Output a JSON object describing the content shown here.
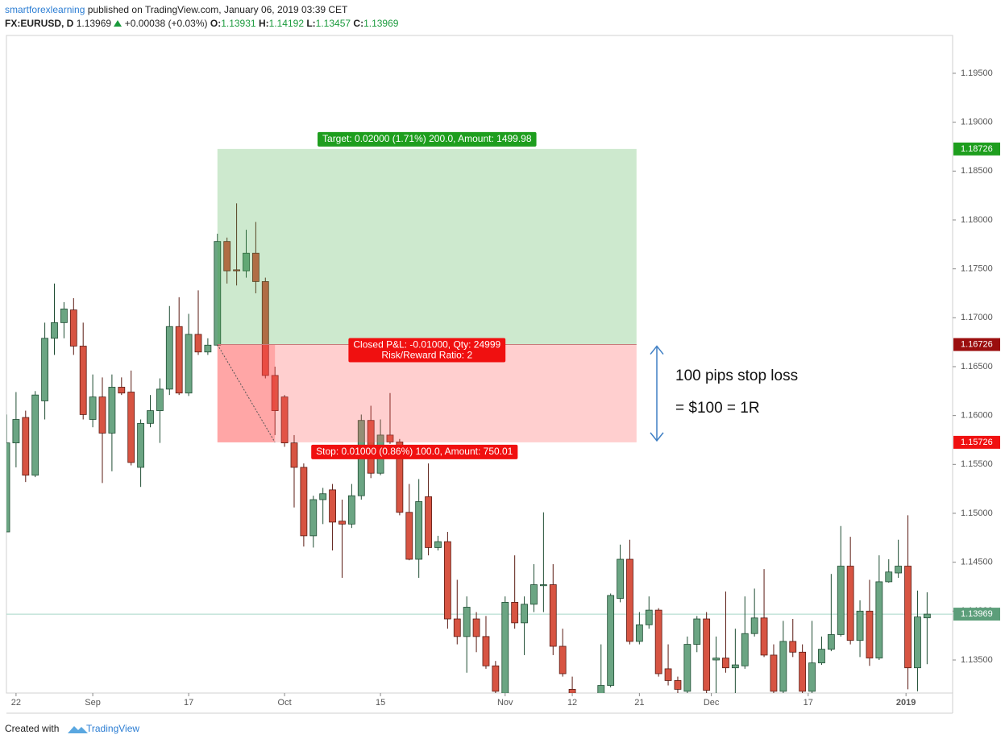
{
  "chart_data": {
    "type": "candlestick",
    "header": {
      "author": "smartforexlearning",
      "published": "published on TradingView.com, January 06, 2019 03:39 CET",
      "symbol": "FX:EURUSD, D",
      "last": 1.13969,
      "change": "+0.00038 (+0.03%)",
      "ohlc": [
        {
          "label": "O:",
          "value": 1.13931
        },
        {
          "label": "H:",
          "value": 1.14192
        },
        {
          "label": "L:",
          "value": 1.13457
        },
        {
          "label": "C:",
          "value": 1.13969
        }
      ]
    },
    "up_color": "#6ba583",
    "down_color": "#d75442",
    "x": [
      0,
      1,
      2,
      3,
      4,
      5,
      6,
      7,
      8,
      9,
      10,
      11,
      12,
      13,
      14,
      15,
      16,
      17,
      18,
      19,
      20,
      21,
      22,
      23,
      24,
      25,
      26,
      27,
      28,
      29,
      30,
      31,
      32,
      33,
      34,
      35,
      36,
      37,
      38,
      39,
      40,
      41,
      42,
      43,
      44,
      45,
      46,
      47,
      48,
      49,
      50,
      51,
      52,
      53,
      54,
      55,
      56,
      57,
      58,
      59,
      62,
      63,
      64,
      65,
      66,
      67,
      68,
      69,
      70,
      71,
      72,
      73,
      74,
      75,
      76,
      77,
      78,
      79,
      80,
      81,
      82,
      83,
      84,
      85,
      86,
      87,
      88,
      89,
      90,
      91,
      92,
      93,
      94,
      95,
      96
    ],
    "open": [
      1.1481,
      1.1572,
      1.1598,
      1.1539,
      1.1615,
      1.1679,
      1.1695,
      1.1708,
      1.1671,
      1.1596,
      1.1619,
      1.1582,
      1.1629,
      1.1624,
      1.1547,
      1.1592,
      1.1605,
      1.1627,
      1.1691,
      1.1623,
      1.1683,
      1.1665,
      1.1672,
      1.1778,
      1.1749,
      1.1748,
      1.1766,
      1.1737,
      1.1641,
      1.1619,
      1.1572,
      1.1547,
      1.1477,
      1.1514,
      1.1524,
      1.1492,
      1.1489,
      1.1518,
      1.1595,
      1.1541,
      1.158,
      1.1573,
      1.1501,
      1.1453,
      1.1517,
      1.1465,
      1.1471,
      1.1392,
      1.1374,
      1.1392,
      1.1374,
      1.1344,
      1.1316,
      1.1409,
      1.1388,
      1.1407,
      1.1426,
      1.1427,
      1.1364,
      1.132,
      1.131,
      1.1324,
      1.1413,
      1.1453,
      1.1369,
      1.1386,
      1.1401,
      1.1341,
      1.1329,
      1.1318,
      1.1366,
      1.1392,
      1.135,
      1.1352,
      1.1342,
      1.1344,
      1.1377,
      1.1393,
      1.1355,
      1.1318,
      1.1369,
      1.1358,
      1.1318,
      1.1347,
      1.1361,
      1.1376,
      1.1446,
      1.137,
      1.14,
      1.1352,
      1.143,
      1.1439,
      1.1446,
      1.1342,
      1.13931
    ],
    "high": [
      1.1601,
      1.1624,
      1.1605,
      1.1625,
      1.1695,
      1.1735,
      1.1716,
      1.172,
      1.1695,
      1.1642,
      1.1639,
      1.1642,
      1.1639,
      1.1646,
      1.1596,
      1.1621,
      1.1638,
      1.1712,
      1.1721,
      1.1704,
      1.1728,
      1.1679,
      1.1786,
      1.1782,
      1.1817,
      1.179,
      1.1798,
      1.1741,
      1.165,
      1.1621,
      1.158,
      1.1551,
      1.1518,
      1.1526,
      1.153,
      1.1514,
      1.153,
      1.1601,
      1.161,
      1.1596,
      1.1623,
      1.1576,
      1.153,
      1.1535,
      1.1551,
      1.1477,
      1.1481,
      1.1432,
      1.1415,
      1.1399,
      1.1395,
      1.1349,
      1.1415,
      1.1457,
      1.1415,
      1.1448,
      1.1501,
      1.1448,
      1.1382,
      1.1333,
      1.1366,
      1.1418,
      1.1468,
      1.1473,
      1.1399,
      1.1415,
      1.1403,
      1.1366,
      1.1333,
      1.1374,
      1.1395,
      1.1399,
      1.1374,
      1.142,
      1.1382,
      1.1415,
      1.1423,
      1.1443,
      1.1366,
      1.139,
      1.1392,
      1.1366,
      1.139,
      1.1374,
      1.1438,
      1.1487,
      1.1476,
      1.1411,
      1.1432,
      1.1457,
      1.1453,
      1.1473,
      1.1498,
      1.1421,
      1.14192
    ],
    "low": [
      1.1481,
      1.1547,
      1.1532,
      1.1537,
      1.1596,
      1.1662,
      1.1679,
      1.1662,
      1.1596,
      1.1588,
      1.1531,
      1.1543,
      1.1621,
      1.1549,
      1.1527,
      1.1588,
      1.1572,
      1.1621,
      1.1621,
      1.162,
      1.1662,
      1.1662,
      1.1671,
      1.1735,
      1.1733,
      1.1741,
      1.1725,
      1.1638,
      1.158,
      1.1568,
      1.1506,
      1.1466,
      1.1465,
      1.1489,
      1.1462,
      1.1434,
      1.1485,
      1.1514,
      1.1536,
      1.1539,
      1.1571,
      1.1498,
      1.1452,
      1.1434,
      1.1457,
      1.1462,
      1.1382,
      1.1366,
      1.1337,
      1.1358,
      1.1341,
      1.1316,
      1.131,
      1.1382,
      1.1355,
      1.1399,
      1.1399,
      1.1355,
      1.1333,
      1.1305,
      1.13,
      1.1322,
      1.1409,
      1.1366,
      1.1366,
      1.1382,
      1.1333,
      1.1324,
      1.131,
      1.131,
      1.1358,
      1.131,
      1.131,
      1.1337,
      1.131,
      1.1341,
      1.1374,
      1.1353,
      1.131,
      1.131,
      1.1353,
      1.131,
      1.131,
      1.1345,
      1.1359,
      1.1374,
      1.1366,
      1.1353,
      1.1344,
      1.135,
      1.1429,
      1.1434,
      1.132,
      1.1318,
      1.13457
    ],
    "close": [
      1.1572,
      1.1596,
      1.1539,
      1.1621,
      1.1679,
      1.1695,
      1.1709,
      1.1671,
      1.1601,
      1.1619,
      1.1582,
      1.1629,
      1.1623,
      1.1552,
      1.1592,
      1.1605,
      1.1627,
      1.1691,
      1.1623,
      1.1683,
      1.1665,
      1.1672,
      1.1778,
      1.1748,
      1.1748,
      1.1766,
      1.1737,
      1.1641,
      1.1605,
      1.1572,
      1.1547,
      1.1477,
      1.1514,
      1.152,
      1.1491,
      1.1489,
      1.1518,
      1.1595,
      1.1541,
      1.158,
      1.1573,
      1.1501,
      1.1453,
      1.1512,
      1.1465,
      1.1471,
      1.1392,
      1.1374,
      1.1404,
      1.1374,
      1.1344,
      1.1318,
      1.1409,
      1.1388,
      1.1407,
      1.1427,
      1.1427,
      1.1364,
      1.1336,
      1.1316,
      1.1324,
      1.1416,
      1.1453,
      1.1369,
      1.1386,
      1.1401,
      1.1336,
      1.1329,
      1.132,
      1.1366,
      1.1392,
      1.1319,
      1.1352,
      1.1342,
      1.1345,
      1.1377,
      1.1393,
      1.1355,
      1.1318,
      1.1369,
      1.1358,
      1.1318,
      1.1347,
      1.1361,
      1.1376,
      1.1446,
      1.137,
      1.14,
      1.1352,
      1.143,
      1.144,
      1.1446,
      1.1342,
      1.1394,
      1.13969
    ],
    "xlim": [
      0,
      98.66
    ],
    "xticks": [
      {
        "value": 1,
        "label": "22"
      },
      {
        "value": 9,
        "label": "Sep"
      },
      {
        "value": 19,
        "label": "17"
      },
      {
        "value": 29,
        "label": "Oct"
      },
      {
        "value": 39,
        "label": "15"
      },
      {
        "value": 52,
        "label": "Nov"
      },
      {
        "value": 59,
        "label": "12"
      },
      {
        "value": 66,
        "label": "21"
      },
      {
        "value": 73.5,
        "label": "Dec"
      },
      {
        "value": 83.6,
        "label": "17"
      },
      {
        "value": 93.8,
        "label": "2019"
      }
    ],
    "ylim": [
      1.13162,
      1.19887
    ],
    "yticks": [
      {
        "value": 1.135,
        "label": "1.13500"
      },
      {
        "value": 1.14,
        "label": "1.14000"
      },
      {
        "value": 1.145,
        "label": "1.14500"
      },
      {
        "value": 1.15,
        "label": "1.15000"
      },
      {
        "value": 1.155,
        "label": "1.15500"
      },
      {
        "value": 1.16,
        "label": "1.16000"
      },
      {
        "value": 1.165,
        "label": "1.16500"
      },
      {
        "value": 1.17,
        "label": "1.17000"
      },
      {
        "value": 1.175,
        "label": "1.17500"
      },
      {
        "value": 1.18,
        "label": "1.18000"
      },
      {
        "value": 1.185,
        "label": "1.18500"
      },
      {
        "value": 1.19,
        "label": "1.19000"
      },
      {
        "value": 1.195,
        "label": "1.19500"
      }
    ],
    "position": {
      "entry": 1.16726,
      "target": 1.18726,
      "stop": 1.15726,
      "x_range": [
        22,
        65.7
      ],
      "closed_x": 28,
      "target_label": "Target: 0.02000 (1.71%) 200.0, Amount: 1499.98",
      "pnl_label": "Closed P&L: -0.01000, Qty: 24999",
      "ratio_label": "Risk/Reward Ratio: 2",
      "stop_label": "Stop: 0.01000 (0.86%) 100.0, Amount: 750.01"
    },
    "annotations": [
      "100 pips stop loss",
      "= $100 = 1R"
    ],
    "footer": {
      "prefix": "Created with",
      "brand": "TradingView"
    }
  }
}
